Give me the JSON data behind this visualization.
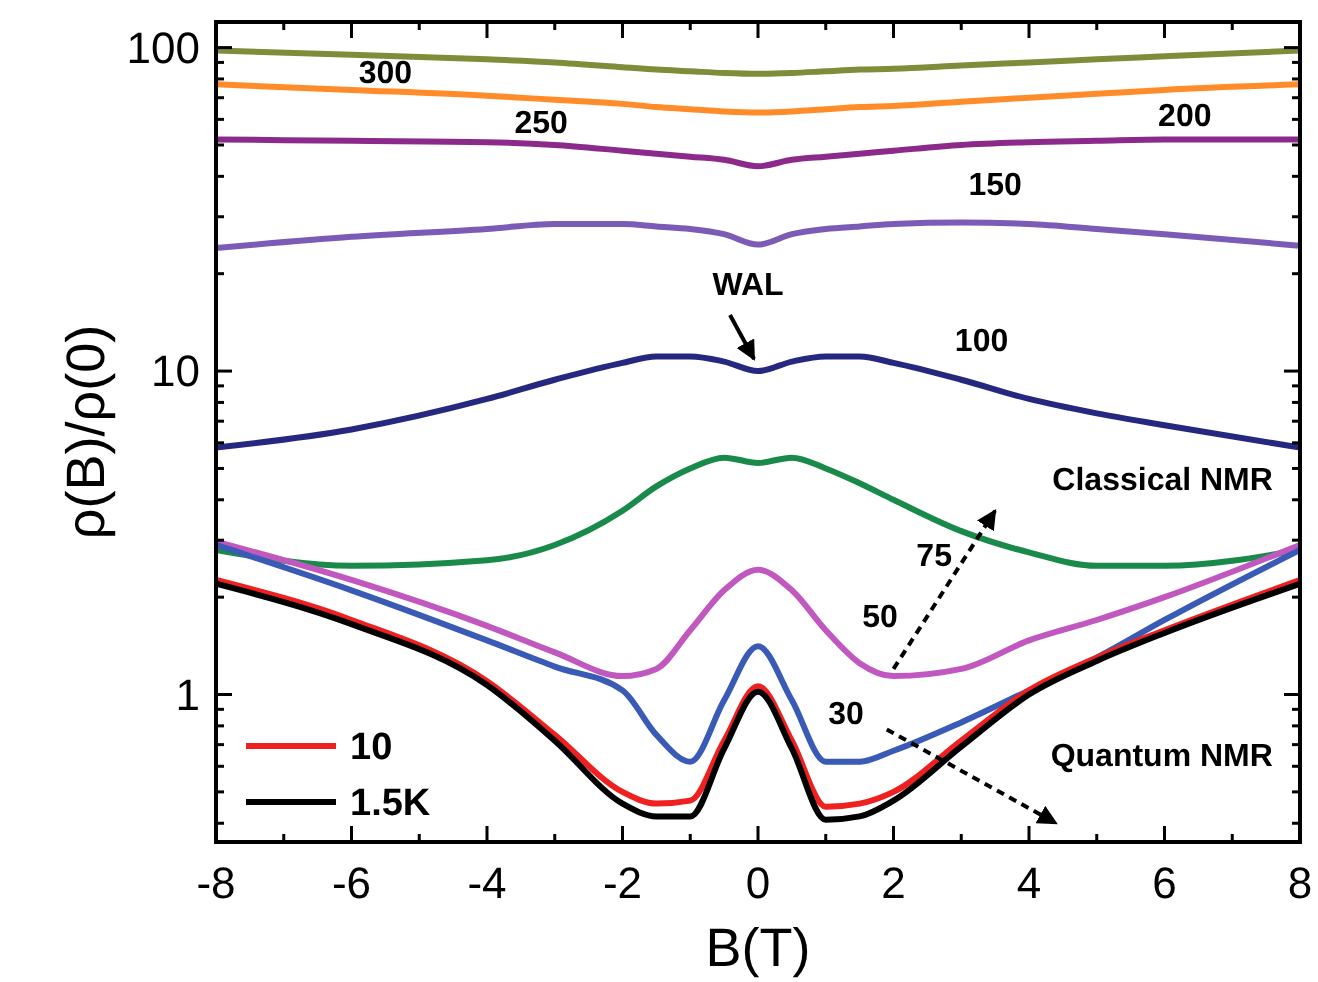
{
  "chart_data": {
    "type": "line",
    "xlabel": "B(T)",
    "ylabel": "ρ(B)/ρ(0)",
    "log": "y",
    "xlim": [
      -8,
      8
    ],
    "ylim": [
      0.35,
      120
    ],
    "xticks": [
      -8,
      {
        "value": -7,
        "label": null
      },
      -6,
      {
        "value": -5,
        "label": null
      },
      -4,
      {
        "value": -3,
        "label": null
      },
      -2,
      {
        "value": -1,
        "label": null
      },
      0,
      {
        "value": 1,
        "label": null
      },
      2,
      {
        "value": 3,
        "label": null
      },
      4,
      {
        "value": 5,
        "label": null
      },
      6,
      {
        "value": 7,
        "label": null
      },
      8
    ],
    "yticks": [
      {
        "value": 0.4,
        "label": null
      },
      {
        "value": 0.5,
        "label": null
      },
      {
        "value": 0.6,
        "label": null
      },
      {
        "value": 0.7,
        "label": null
      },
      {
        "value": 0.8,
        "label": null
      },
      {
        "value": 0.9,
        "label": null
      },
      1,
      {
        "value": 2,
        "label": null
      },
      {
        "value": 3,
        "label": null
      },
      {
        "value": 4,
        "label": null
      },
      {
        "value": 5,
        "label": null
      },
      {
        "value": 6,
        "label": null
      },
      {
        "value": 7,
        "label": null
      },
      {
        "value": 8,
        "label": null
      },
      {
        "value": 9,
        "label": null
      },
      10,
      {
        "value": 20,
        "label": null
      },
      {
        "value": 30,
        "label": null
      },
      {
        "value": 40,
        "label": null
      },
      {
        "value": 50,
        "label": null
      },
      {
        "value": 60,
        "label": null
      },
      {
        "value": 70,
        "label": null
      },
      {
        "value": 80,
        "label": null
      },
      {
        "value": 90,
        "label": null
      },
      100
    ],
    "grid": false,
    "legend": "bottom left",
    "marker": "none",
    "line_style": "solid",
    "x": [
      -8,
      -6,
      -4,
      -3,
      -2,
      -1.5,
      -1,
      -0.5,
      0,
      0.5,
      1,
      1.5,
      2,
      3,
      4,
      5,
      6,
      8
    ],
    "series": [
      {
        "name": "300",
        "color": "#7f8c3a",
        "values": [
          98,
          95,
          92,
          90,
          87,
          85.5,
          84.5,
          83.5,
          83,
          83.5,
          84.5,
          85.5,
          86,
          88,
          90,
          92,
          94,
          98
        ]
      },
      {
        "name": "250",
        "color": "#ff8c28",
        "values": [
          77,
          74,
          71,
          69,
          67,
          65.5,
          64.5,
          63.5,
          63,
          63.5,
          64.5,
          65.5,
          66,
          68,
          70,
          72,
          74,
          77
        ]
      },
      {
        "name": "200",
        "color": "#8b2a8b",
        "values": [
          52,
          51.5,
          51,
          50,
          48,
          47,
          46,
          45,
          43,
          45,
          46,
          47,
          48,
          50,
          51,
          51.5,
          52,
          52
        ]
      },
      {
        "name": "150",
        "color": "#7b5bb5",
        "values": [
          24,
          26,
          27.5,
          28.5,
          28.5,
          28,
          27.5,
          26.5,
          24.6,
          26.5,
          27.5,
          28,
          28.5,
          28.8,
          28.5,
          27.5,
          26.5,
          24.4
        ]
      },
      {
        "name": "100",
        "color": "#26287f",
        "values": [
          5.8,
          6.6,
          8.2,
          9.4,
          10.6,
          11.1,
          11.1,
          10.7,
          10,
          10.7,
          11.1,
          11.1,
          10.6,
          9.4,
          8.2,
          7.4,
          6.8,
          5.8
        ]
      },
      {
        "name": "75",
        "color": "#1a8a4a",
        "values": [
          2.8,
          2.5,
          2.6,
          2.9,
          3.7,
          4.4,
          5.0,
          5.4,
          5.2,
          5.4,
          5.0,
          4.5,
          4.0,
          3.2,
          2.75,
          2.5,
          2.5,
          2.8
        ]
      },
      {
        "name": "50",
        "color": "#c058c0",
        "values": [
          2.97,
          2.26,
          1.63,
          1.35,
          1.14,
          1.2,
          1.58,
          2.1,
          2.43,
          2.1,
          1.58,
          1.25,
          1.14,
          1.2,
          1.47,
          1.7,
          2.0,
          2.9
        ]
      },
      {
        "name": "30",
        "color": "#3a5bb5",
        "values": [
          2.9,
          2.1,
          1.47,
          1.22,
          1.03,
          0.75,
          0.62,
          0.96,
          1.41,
          0.96,
          0.62,
          0.62,
          0.67,
          0.82,
          1.03,
          1.3,
          1.7,
          2.8
        ]
      },
      {
        "name": "10",
        "color": "#ee2020",
        "values": [
          2.26,
          1.7,
          1.1,
          0.75,
          0.5,
          0.46,
          0.47,
          0.72,
          1.06,
          0.72,
          0.45,
          0.46,
          0.5,
          0.72,
          1.03,
          1.3,
          1.58,
          2.26
        ]
      },
      {
        "name": "1.5K",
        "color": "#000000",
        "values": [
          2.2,
          1.65,
          1.07,
          0.72,
          0.46,
          0.42,
          0.42,
          0.68,
          1.02,
          0.68,
          0.41,
          0.42,
          0.47,
          0.69,
          1.0,
          1.27,
          1.55,
          2.2
        ]
      }
    ],
    "annotations": [
      {
        "text": "WAL",
        "x": 0,
        "y": 10
      },
      "Classical NMR",
      "Quantum NMR"
    ]
  }
}
